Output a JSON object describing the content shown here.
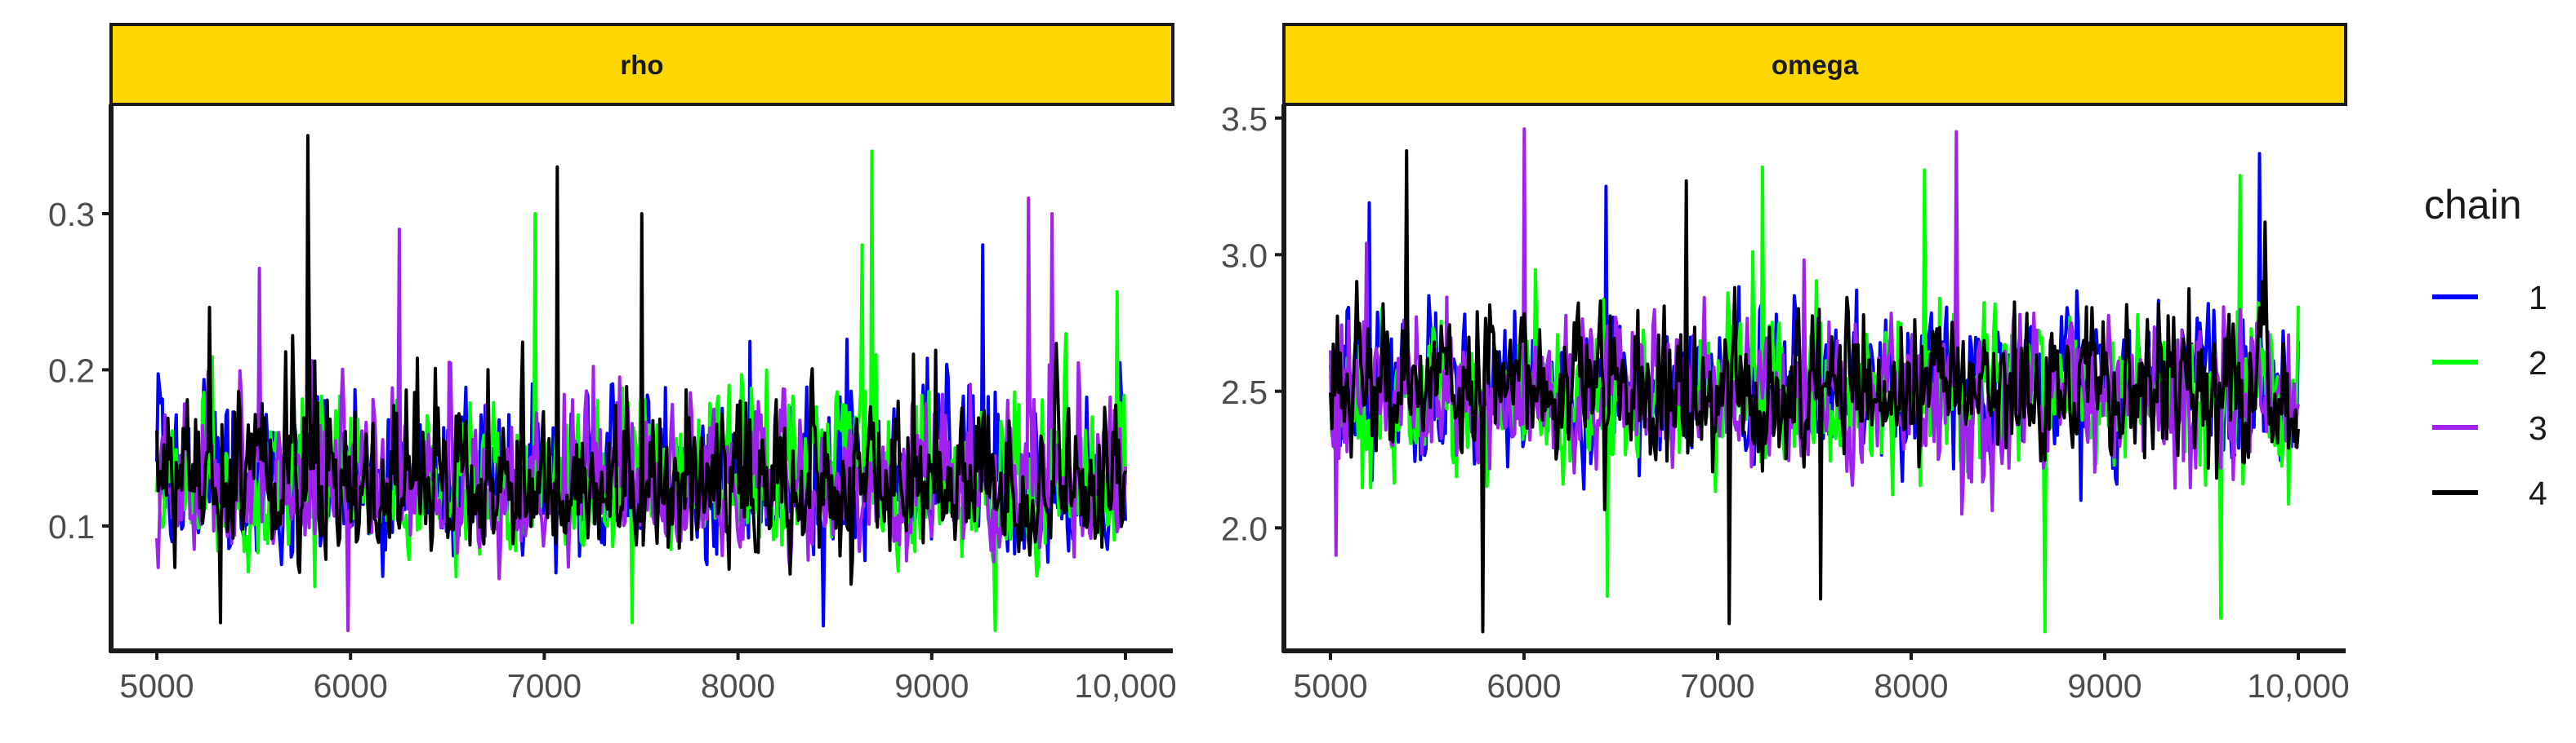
{
  "chart_data": {
    "type": "line",
    "legend": {
      "title": "chain",
      "position": "right"
    },
    "series": [
      {
        "name": "1",
        "color": "#0000FF"
      },
      {
        "name": "2",
        "color": "#00FF00"
      },
      {
        "name": "3",
        "color": "#A020F0"
      },
      {
        "name": "4",
        "color": "#000000"
      }
    ],
    "strip_color": "#FFD700",
    "grid": false,
    "x": {
      "range": [
        5000,
        10000
      ],
      "ticks": [
        5000,
        6000,
        7000,
        8000,
        9000,
        10000
      ],
      "tick_labels": [
        "5000",
        "6000",
        "7000",
        "8000",
        "9000",
        "10,000"
      ]
    },
    "panels": [
      {
        "title": "rho",
        "ylim": [
          0.02,
          0.37
        ],
        "y_ticks": [
          0.1,
          0.2,
          0.3
        ],
        "y_tick_labels": [
          "0.1",
          "0.2",
          "0.3"
        ],
        "trace_summary": {
          "center": 0.12,
          "typical_range": [
            0.05,
            0.25
          ],
          "min": 0.03,
          "max": 0.35
        },
        "peaks": [
          {
            "chain": "4",
            "x": 5780,
            "y": 0.352
          },
          {
            "chain": "2",
            "x": 8690,
            "y": 0.34
          },
          {
            "chain": "4",
            "x": 7070,
            "y": 0.33
          },
          {
            "chain": "4",
            "x": 7500,
            "y": 0.3
          },
          {
            "chain": "3",
            "x": 9500,
            "y": 0.31
          },
          {
            "chain": "2",
            "x": 6950,
            "y": 0.3
          },
          {
            "chain": "3",
            "x": 6250,
            "y": 0.29
          },
          {
            "chain": "3",
            "x": 9620,
            "y": 0.3
          },
          {
            "chain": "2",
            "x": 8640,
            "y": 0.28
          },
          {
            "chain": "1",
            "x": 9260,
            "y": 0.28
          },
          {
            "chain": "3",
            "x": 5530,
            "y": 0.265
          },
          {
            "chain": "2",
            "x": 9960,
            "y": 0.25
          },
          {
            "chain": "4",
            "x": 5270,
            "y": 0.24
          }
        ],
        "troughs": [
          {
            "chain": "3",
            "x": 5990,
            "y": 0.033
          },
          {
            "chain": "2",
            "x": 9330,
            "y": 0.033
          },
          {
            "chain": "1",
            "x": 8440,
            "y": 0.036
          },
          {
            "chain": "4",
            "x": 5330,
            "y": 0.038
          },
          {
            "chain": "2",
            "x": 7450,
            "y": 0.038
          }
        ]
      },
      {
        "title": "omega",
        "ylim": [
          1.55,
          3.55
        ],
        "y_ticks": [
          2.0,
          2.5,
          3.0,
          3.5
        ],
        "y_tick_labels": [
          "2.0",
          "2.5",
          "3.0",
          "3.5"
        ],
        "trace_summary": {
          "center": 2.5,
          "typical_range": [
            2.0,
            3.05
          ],
          "min": 1.62,
          "max": 3.46
        },
        "peaks": [
          {
            "chain": "3",
            "x": 6000,
            "y": 3.46
          },
          {
            "chain": "3",
            "x": 8230,
            "y": 3.45
          },
          {
            "chain": "4",
            "x": 5390,
            "y": 3.38
          },
          {
            "chain": "1",
            "x": 9800,
            "y": 3.37
          },
          {
            "chain": "2",
            "x": 7230,
            "y": 3.32
          },
          {
            "chain": "2",
            "x": 8070,
            "y": 3.31
          },
          {
            "chain": "4",
            "x": 6840,
            "y": 3.27
          },
          {
            "chain": "1",
            "x": 6420,
            "y": 3.25
          },
          {
            "chain": "2",
            "x": 9700,
            "y": 3.29
          },
          {
            "chain": "1",
            "x": 5200,
            "y": 3.19
          }
        ],
        "troughs": [
          {
            "chain": "4",
            "x": 5790,
            "y": 1.62
          },
          {
            "chain": "2",
            "x": 8690,
            "y": 1.62
          },
          {
            "chain": "4",
            "x": 7060,
            "y": 1.65
          },
          {
            "chain": "2",
            "x": 9600,
            "y": 1.67
          },
          {
            "chain": "4",
            "x": 7530,
            "y": 1.74
          },
          {
            "chain": "2",
            "x": 6430,
            "y": 1.75
          },
          {
            "chain": "3",
            "x": 5030,
            "y": 1.9
          }
        ]
      }
    ]
  }
}
